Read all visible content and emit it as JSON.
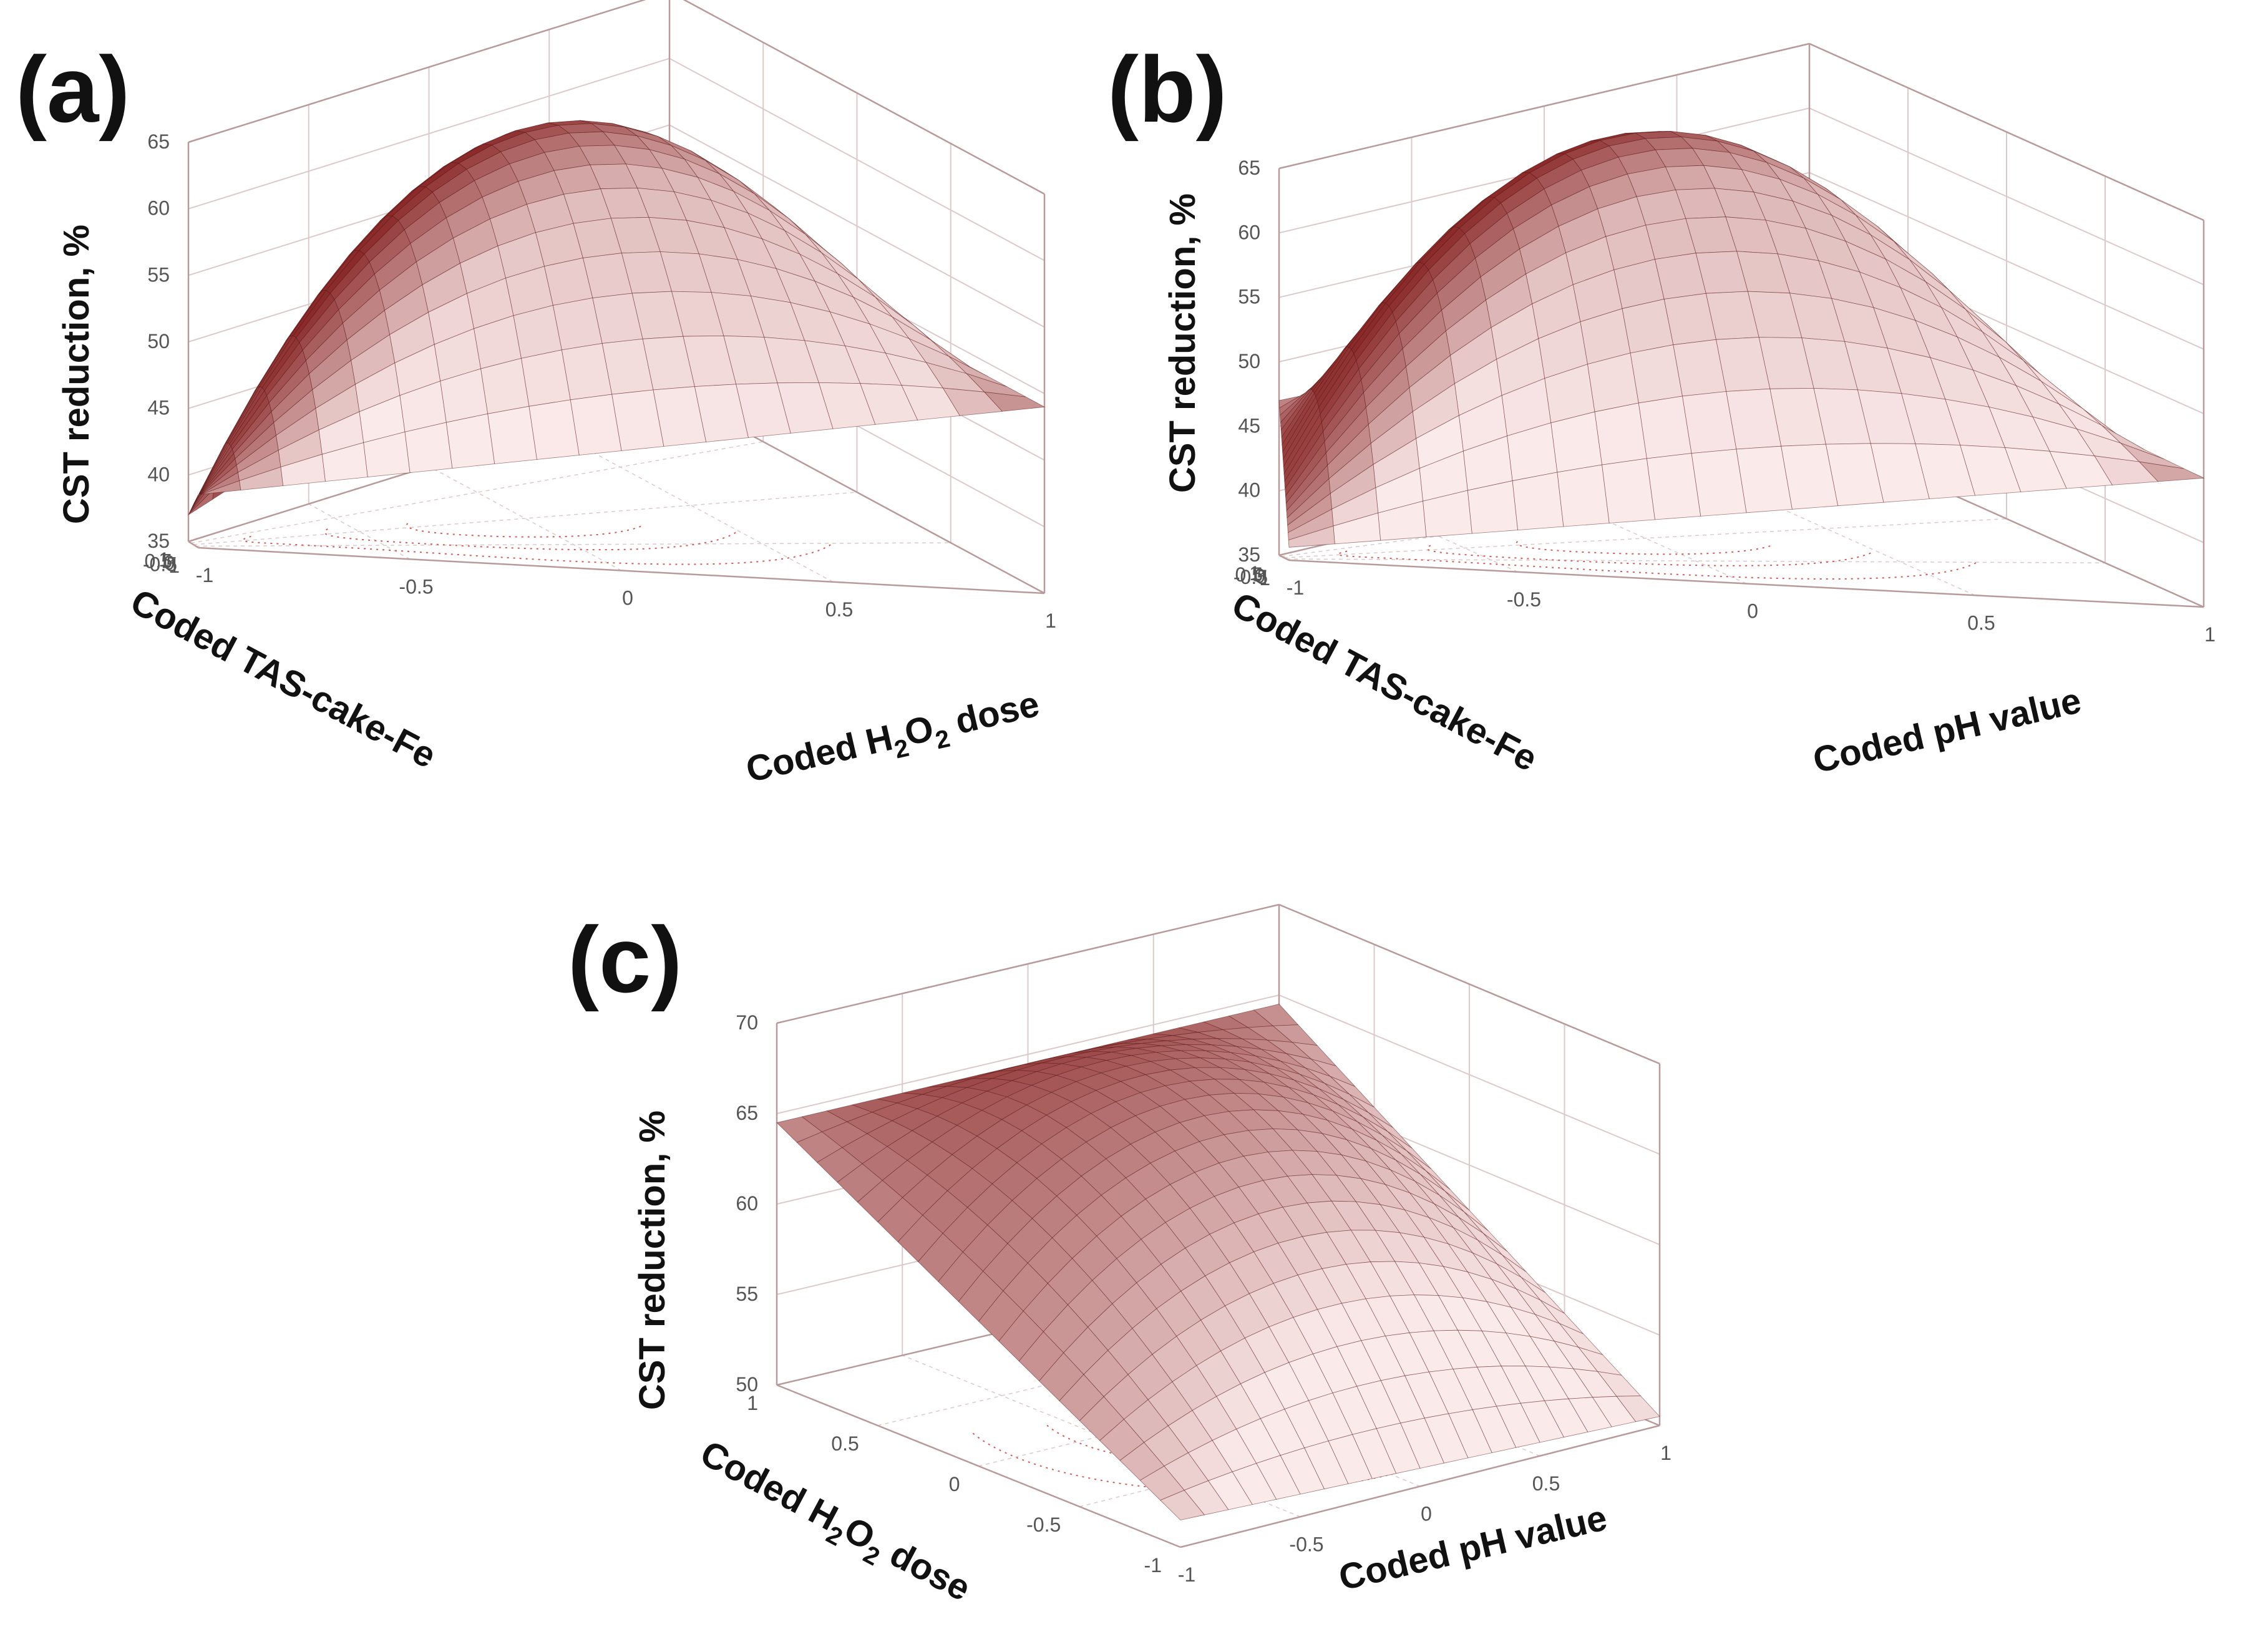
{
  "figure": {
    "colors": {
      "surface": "#8B2A2A",
      "surface_light": "#FBEAEA",
      "grid": "#dccaca",
      "frame": "#b99a9a",
      "contour": "#d05c5c",
      "text": "#111111",
      "tick": "#555555"
    }
  },
  "chart_data": [
    {
      "panel": "(a)",
      "type": "surface3d",
      "title": "(a)",
      "x_label": "Coded H2O2 dose",
      "y_label": "Coded TAS-cake-Fe",
      "z_label": "CST reduction, %",
      "x_ticks": [
        "-1",
        "-0.5",
        "0",
        "0.5",
        "1"
      ],
      "y_ticks": [
        "1",
        "0.5",
        "0",
        "-0.5",
        "-1"
      ],
      "z_ticks": [
        "35",
        "40",
        "45",
        "50",
        "55",
        "60",
        "65"
      ],
      "z_range": [
        35,
        65
      ],
      "corner_values": {
        "xneg_yneg": 39,
        "xpos_yneg": 49,
        "xneg_ypos": 37,
        "xpos_ypos": 49
      },
      "peak": 64
    },
    {
      "panel": "(b)",
      "type": "surface3d",
      "title": "(b)",
      "x_label": "Coded pH value",
      "y_label": "Coded TAS-cake-Fe",
      "z_label": "CST reduction, %",
      "x_ticks": [
        "-1",
        "-0.5",
        "0",
        "0.5",
        "1"
      ],
      "y_ticks": [
        "1",
        "0.5",
        "0",
        "-0.5",
        "-1"
      ],
      "z_ticks": [
        "35",
        "40",
        "45",
        "50",
        "55",
        "60",
        "65"
      ],
      "z_range": [
        35,
        65
      ],
      "corner_values": {
        "xneg_yneg": 36,
        "xpos_yneg": 45,
        "xneg_ypos": 47,
        "xpos_ypos": 46
      },
      "peak": 66
    },
    {
      "panel": "(c)",
      "type": "surface3d",
      "title": "(c)",
      "x_label": "Coded pH value",
      "y_label": "Coded H2O2 dose",
      "z_label": "CST reduction, %",
      "x_ticks": [
        "-1",
        "-0.5",
        "0",
        "0.5",
        "1"
      ],
      "y_ticks": [
        "1",
        "0.5",
        "0",
        "-0.5",
        "-1"
      ],
      "z_ticks": [
        "50",
        "55",
        "60",
        "65",
        "70"
      ],
      "z_range": [
        50,
        70
      ],
      "corner_values": {
        "xneg_yneg": 51.5,
        "xpos_yneg": 50.5,
        "xneg_ypos": 64.5,
        "xpos_ypos": 64.5
      },
      "peak": 65
    }
  ]
}
